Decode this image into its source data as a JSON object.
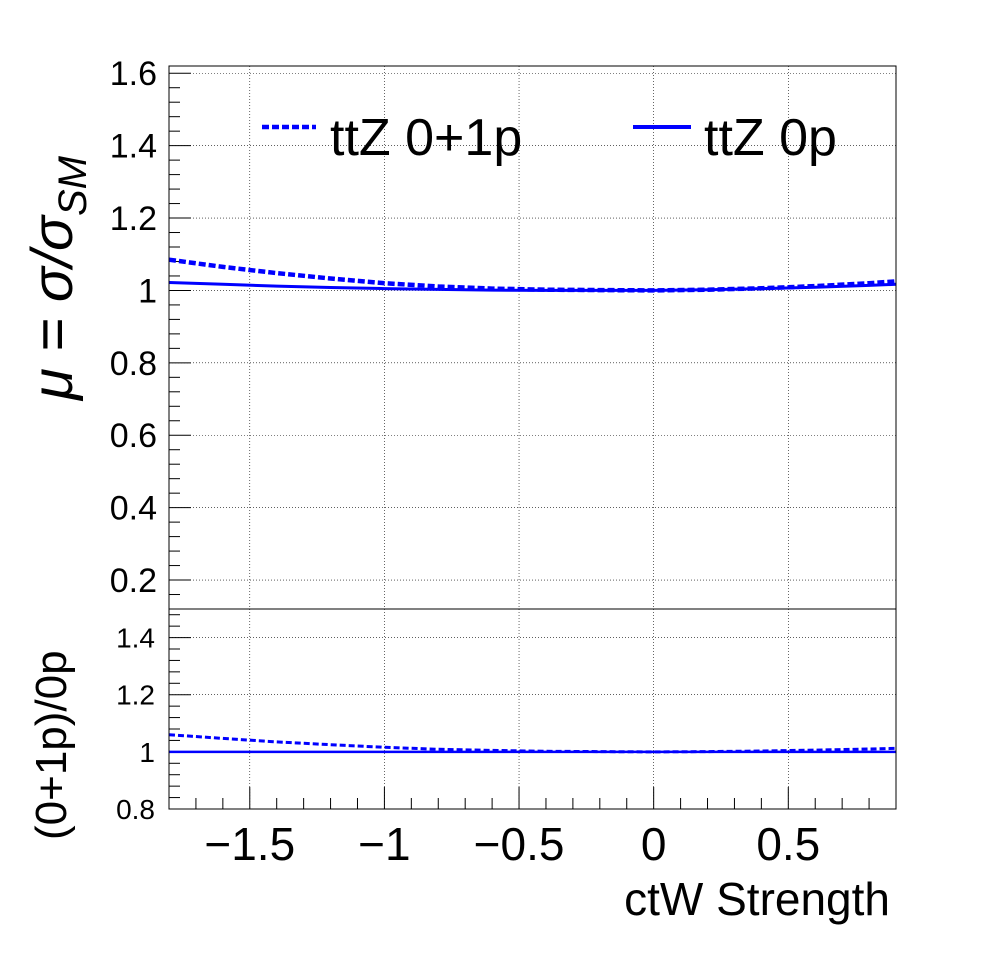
{
  "chart_data": [
    {
      "panel": "main",
      "type": "line",
      "xlim": [
        -1.8,
        0.9
      ],
      "ylim": [
        0.12,
        1.62
      ],
      "grid": true,
      "legend_placement": "top",
      "ylabel": {
        "main": "μ = σ/σ",
        "sub": "SM"
      },
      "yticks": [
        0.2,
        0.4,
        0.6,
        0.8,
        1,
        1.2,
        1.4,
        1.6
      ],
      "ytick_labels": [
        "0.2",
        "0.4",
        "0.6",
        "0.8",
        "1",
        "1.2",
        "1.4",
        "1.6"
      ],
      "series": [
        {
          "name": "ttZ 0+1p",
          "style": "dashed",
          "color": "#0000ff",
          "x": [
            -1.8,
            -1.6,
            -1.4,
            -1.2,
            -1.0,
            -0.8,
            -0.6,
            -0.4,
            -0.2,
            0.0,
            0.2,
            0.4,
            0.6,
            0.8,
            0.9
          ],
          "y": [
            1.085,
            1.065,
            1.048,
            1.033,
            1.02,
            1.011,
            1.005,
            1.002,
            1.001,
            1.0,
            1.002,
            1.006,
            1.012,
            1.02,
            1.025
          ]
        },
        {
          "name": "ttZ 0p",
          "style": "solid",
          "color": "#0000ff",
          "x": [
            -1.8,
            -1.6,
            -1.4,
            -1.2,
            -1.0,
            -0.8,
            -0.6,
            -0.4,
            -0.2,
            0.0,
            0.2,
            0.4,
            0.6,
            0.8,
            0.9
          ],
          "y": [
            1.022,
            1.017,
            1.012,
            1.008,
            1.005,
            1.003,
            1.001,
            1.0,
            1.0,
            1.0,
            1.002,
            1.005,
            1.009,
            1.014,
            1.017
          ]
        }
      ]
    },
    {
      "panel": "ratio",
      "type": "line",
      "xlim": [
        -1.8,
        0.9
      ],
      "ylim": [
        0.8,
        1.5
      ],
      "grid": true,
      "ylabel": "(0+1p)/0p",
      "xlabel": "ctW Strength",
      "yticks": [
        0.8,
        1,
        1.2,
        1.4
      ],
      "ytick_labels": [
        "0.8",
        "1",
        "1.2",
        "1.4"
      ],
      "xticks": [
        -1.5,
        -1,
        -0.5,
        0,
        0.5
      ],
      "xtick_labels": [
        "−1.5",
        "−1",
        "−0.5",
        "0",
        "0.5"
      ],
      "series": [
        {
          "name": "ratio",
          "style": "dashed",
          "color": "#0000ff",
          "x": [
            -1.8,
            -1.6,
            -1.4,
            -1.2,
            -1.0,
            -0.8,
            -0.6,
            -0.4,
            -0.2,
            0.0,
            0.2,
            0.4,
            0.6,
            0.8,
            0.9
          ],
          "y": [
            1.06,
            1.047,
            1.035,
            1.025,
            1.016,
            1.009,
            1.005,
            1.002,
            1.001,
            1.0,
            1.001,
            1.003,
            1.006,
            1.01,
            1.012
          ]
        },
        {
          "name": "unity",
          "style": "solid",
          "color": "#0000ff",
          "x": [
            -1.8,
            0.9
          ],
          "y": [
            1.0,
            1.0
          ]
        }
      ]
    }
  ]
}
